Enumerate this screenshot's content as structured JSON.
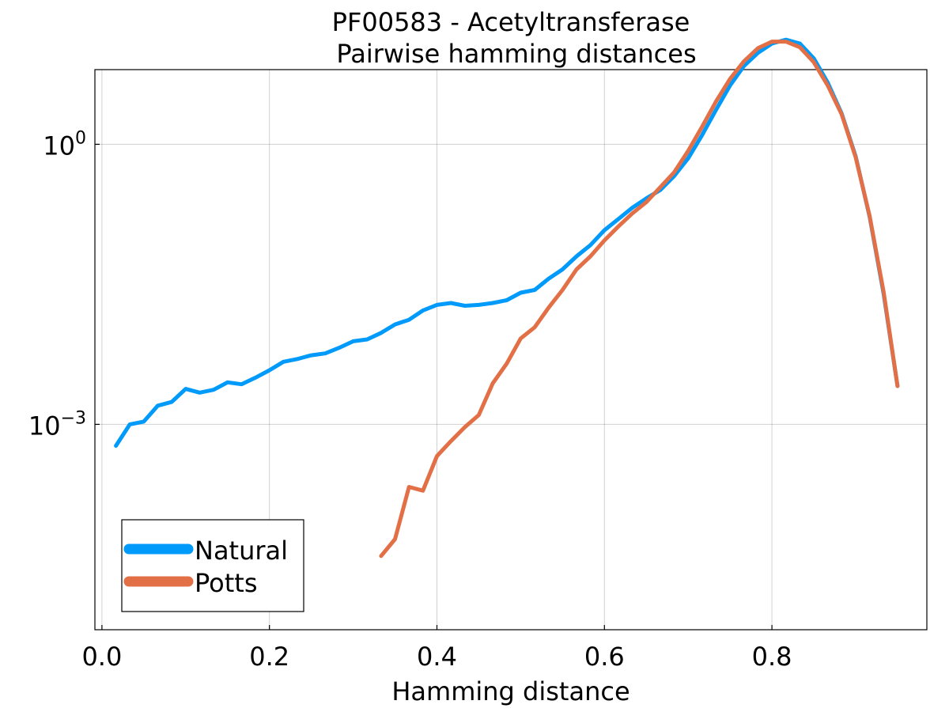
{
  "chart_data": {
    "type": "line",
    "title": "PF00583 - Acetyltransferase",
    "subtitle": "Pairwise hamming distances",
    "xlabel": "Hamming distance",
    "ylabel": "",
    "xlim": [
      -0.0084,
      0.985
    ],
    "ylim": [
      -5.2,
      0.8
    ],
    "y_scale": "log10",
    "grid": true,
    "legend_position": "bottom-left",
    "x_ticks": [
      {
        "value": 0.0,
        "label": "0.0"
      },
      {
        "value": 0.2,
        "label": "0.2"
      },
      {
        "value": 0.4,
        "label": "0.4"
      },
      {
        "value": 0.6,
        "label": "0.6"
      },
      {
        "value": 0.8,
        "label": "0.8"
      }
    ],
    "y_ticks": [
      {
        "value": 0,
        "base": "10",
        "exp": "0"
      },
      {
        "value": -3,
        "base": "10",
        "exp": "−3"
      }
    ],
    "series": [
      {
        "name": "Natural",
        "color": "#009AFA",
        "points": [
          [
            0.0167,
            -3.23
          ],
          [
            0.0333,
            -3.0
          ],
          [
            0.05,
            -2.97
          ],
          [
            0.0667,
            -2.8
          ],
          [
            0.0833,
            -2.76
          ],
          [
            0.1,
            -2.62
          ],
          [
            0.1167,
            -2.66
          ],
          [
            0.1333,
            -2.63
          ],
          [
            0.15,
            -2.55
          ],
          [
            0.1667,
            -2.57
          ],
          [
            0.1833,
            -2.5
          ],
          [
            0.2,
            -2.42
          ],
          [
            0.2167,
            -2.33
          ],
          [
            0.2333,
            -2.3
          ],
          [
            0.25,
            -2.26
          ],
          [
            0.2667,
            -2.24
          ],
          [
            0.2833,
            -2.18
          ],
          [
            0.3,
            -2.11
          ],
          [
            0.3167,
            -2.09
          ],
          [
            0.3333,
            -2.02
          ],
          [
            0.35,
            -1.93
          ],
          [
            0.3667,
            -1.88
          ],
          [
            0.3833,
            -1.78
          ],
          [
            0.4,
            -1.72
          ],
          [
            0.4167,
            -1.7
          ],
          [
            0.4333,
            -1.73
          ],
          [
            0.45,
            -1.72
          ],
          [
            0.4667,
            -1.7
          ],
          [
            0.4833,
            -1.67
          ],
          [
            0.5,
            -1.59
          ],
          [
            0.5167,
            -1.56
          ],
          [
            0.5333,
            -1.44
          ],
          [
            0.55,
            -1.34
          ],
          [
            0.5667,
            -1.2
          ],
          [
            0.5833,
            -1.08
          ],
          [
            0.6,
            -0.92
          ],
          [
            0.6167,
            -0.8
          ],
          [
            0.6333,
            -0.68
          ],
          [
            0.65,
            -0.58
          ],
          [
            0.6667,
            -0.49
          ],
          [
            0.6833,
            -0.34
          ],
          [
            0.7,
            -0.15
          ],
          [
            0.7167,
            0.1
          ],
          [
            0.7333,
            0.37
          ],
          [
            0.75,
            0.63
          ],
          [
            0.7667,
            0.84
          ],
          [
            0.7833,
            0.98
          ],
          [
            0.8,
            1.08
          ],
          [
            0.8167,
            1.12
          ],
          [
            0.8333,
            1.08
          ],
          [
            0.85,
            0.92
          ],
          [
            0.8667,
            0.66
          ],
          [
            0.8833,
            0.33
          ],
          [
            0.9,
            -0.13
          ],
          [
            0.9167,
            -0.78
          ],
          [
            0.9333,
            -1.6
          ],
          [
            0.95,
            -2.59
          ]
        ]
      },
      {
        "name": "Potts",
        "color": "#E26F46",
        "points": [
          [
            0.3333,
            -4.41
          ],
          [
            0.35,
            -4.23
          ],
          [
            0.3667,
            -3.67
          ],
          [
            0.3833,
            -3.71
          ],
          [
            0.4,
            -3.34
          ],
          [
            0.4167,
            -3.18
          ],
          [
            0.4333,
            -3.03
          ],
          [
            0.45,
            -2.9
          ],
          [
            0.4667,
            -2.56
          ],
          [
            0.4833,
            -2.35
          ],
          [
            0.5,
            -2.08
          ],
          [
            0.5167,
            -1.96
          ],
          [
            0.5333,
            -1.75
          ],
          [
            0.55,
            -1.56
          ],
          [
            0.5667,
            -1.34
          ],
          [
            0.5833,
            -1.2
          ],
          [
            0.6,
            -1.03
          ],
          [
            0.6167,
            -0.88
          ],
          [
            0.6333,
            -0.74
          ],
          [
            0.65,
            -0.62
          ],
          [
            0.6667,
            -0.46
          ],
          [
            0.6833,
            -0.3
          ],
          [
            0.7,
            -0.07
          ],
          [
            0.7167,
            0.19
          ],
          [
            0.7333,
            0.46
          ],
          [
            0.75,
            0.7
          ],
          [
            0.7667,
            0.89
          ],
          [
            0.7833,
            1.03
          ],
          [
            0.8,
            1.1
          ],
          [
            0.8167,
            1.1
          ],
          [
            0.8333,
            1.04
          ],
          [
            0.85,
            0.88
          ],
          [
            0.8667,
            0.63
          ],
          [
            0.8833,
            0.32
          ],
          [
            0.9,
            -0.14
          ],
          [
            0.9167,
            -0.77
          ],
          [
            0.9333,
            -1.58
          ],
          [
            0.95,
            -2.59
          ]
        ]
      }
    ]
  }
}
